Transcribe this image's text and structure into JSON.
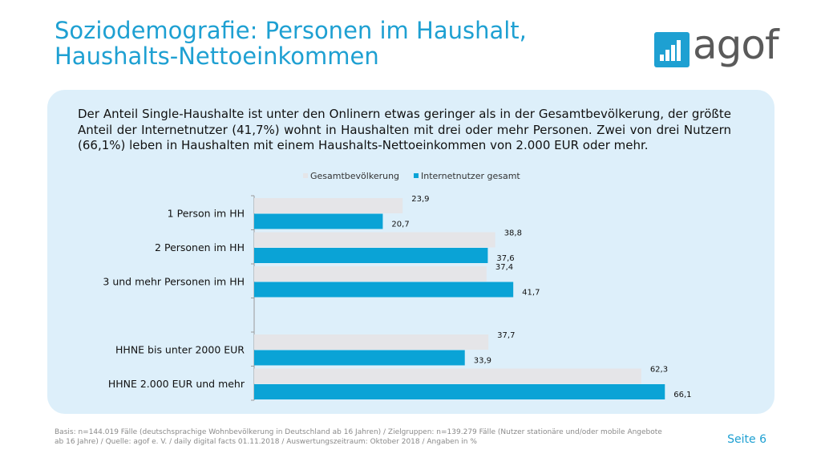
{
  "title": {
    "line1": "Soziodemografie: Personen im Haushalt,",
    "line2": "Haushalts-Nettoeinkommen"
  },
  "logo": {
    "text": "agof",
    "icon": "agof-bars-icon",
    "color": "#1ea0d2"
  },
  "intro": "Der Anteil Single-Haushalte ist unter den Onlinern etwas geringer als in der Gesamtbevölkerung, der größte Anteil der Internetnutzer (41,7%) wohnt in Haushalten mit drei oder mehr Personen. Zwei von drei Nutzern (66,1%) leben in Haushalten mit einem Haushalts-Nettoeinkommen von 2.000 EUR oder mehr.",
  "chart_data": {
    "type": "bar",
    "orientation": "horizontal",
    "categories": [
      "1 Person im HH",
      "2 Personen im HH",
      "3 und mehr Personen im HH",
      "",
      "HHNE bis unter 2000 EUR",
      "HHNE 2.000 EUR und mehr"
    ],
    "series": [
      {
        "name": "Gesamtbevölkerung",
        "color": "#e5e5e8",
        "values": [
          23.9,
          38.8,
          37.4,
          null,
          37.7,
          62.3
        ],
        "labels": [
          "23,9",
          "38,8",
          "37,4",
          "",
          "37,7",
          "62,3"
        ]
      },
      {
        "name": "Internetnutzer gesamt",
        "color": "#0aa3d6",
        "values": [
          20.7,
          37.6,
          41.7,
          null,
          33.9,
          66.1
        ],
        "labels": [
          "20,7",
          "37,6",
          "41,7",
          "",
          "33,9",
          "66,1"
        ]
      }
    ],
    "xlim": [
      0,
      80
    ],
    "legend": "top",
    "grid": false
  },
  "footer": "Basis: n=144.019 Fälle (deutschsprachige Wohnbevölkerung in Deutschland ab 16 Jahren) / Zielgruppen: n=139.279 Fälle (Nutzer stationäre und/oder mobile Angebote ab 16 Jahre) / Quelle: agof e. V. / daily digital facts 01.11.2018 / Auswertungszeitraum: Oktober 2018 / Angaben in %",
  "page": "Seite 6"
}
